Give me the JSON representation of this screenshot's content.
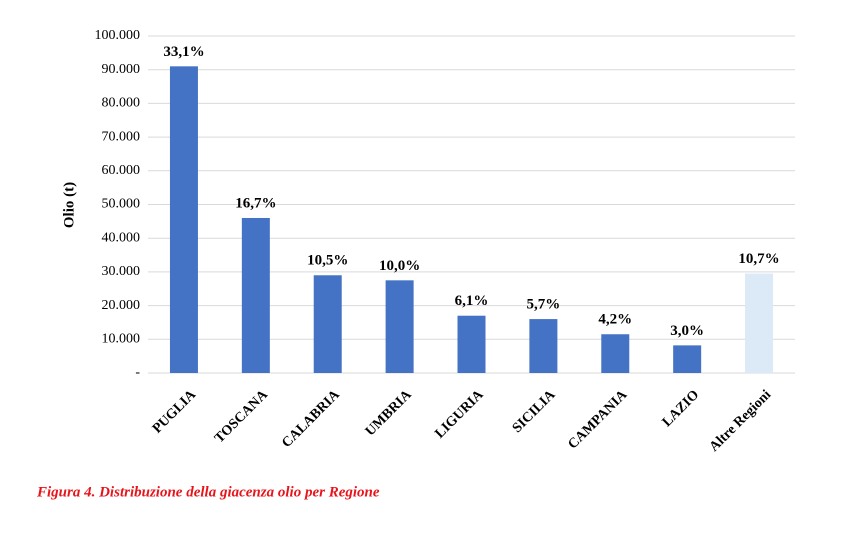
{
  "chart_data": {
    "type": "bar",
    "y_label": "Olio (t)",
    "caption": "Figura 4. Distribuzione della giacenza olio per Regione",
    "categories": [
      "PUGLIA",
      "TOSCANA",
      "CALABRIA",
      "UMBRIA",
      "LIGURIA",
      "SICILIA",
      "CAMPANIA",
      "LAZIO",
      "Altre Regioni"
    ],
    "values": [
      91000,
      46000,
      29000,
      27500,
      17000,
      16000,
      11500,
      8200,
      29500
    ],
    "share_labels": [
      "33,1%",
      "16,7%",
      "10,5%",
      "10,0%",
      "6,1%",
      "5,7%",
      "4,2%",
      "3,0%",
      "10,7%"
    ],
    "colors": [
      "#4472c4",
      "#4472c4",
      "#4472c4",
      "#4472c4",
      "#4472c4",
      "#4472c4",
      "#4472c4",
      "#4472c4",
      "#dce9f7"
    ],
    "ylim": [
      0,
      100000
    ],
    "yticks": [
      {
        "value": 0,
        "label": "-"
      },
      {
        "value": 10000,
        "label": "10.000"
      },
      {
        "value": 20000,
        "label": "20.000"
      },
      {
        "value": 30000,
        "label": "30.000"
      },
      {
        "value": 40000,
        "label": "40.000"
      },
      {
        "value": 50000,
        "label": "50.000"
      },
      {
        "value": 60000,
        "label": "60.000"
      },
      {
        "value": 70000,
        "label": "70.000"
      },
      {
        "value": 80000,
        "label": "80.000"
      },
      {
        "value": 90000,
        "label": "90.000"
      },
      {
        "value": 100000,
        "label": "100.000"
      }
    ],
    "grid": true
  }
}
